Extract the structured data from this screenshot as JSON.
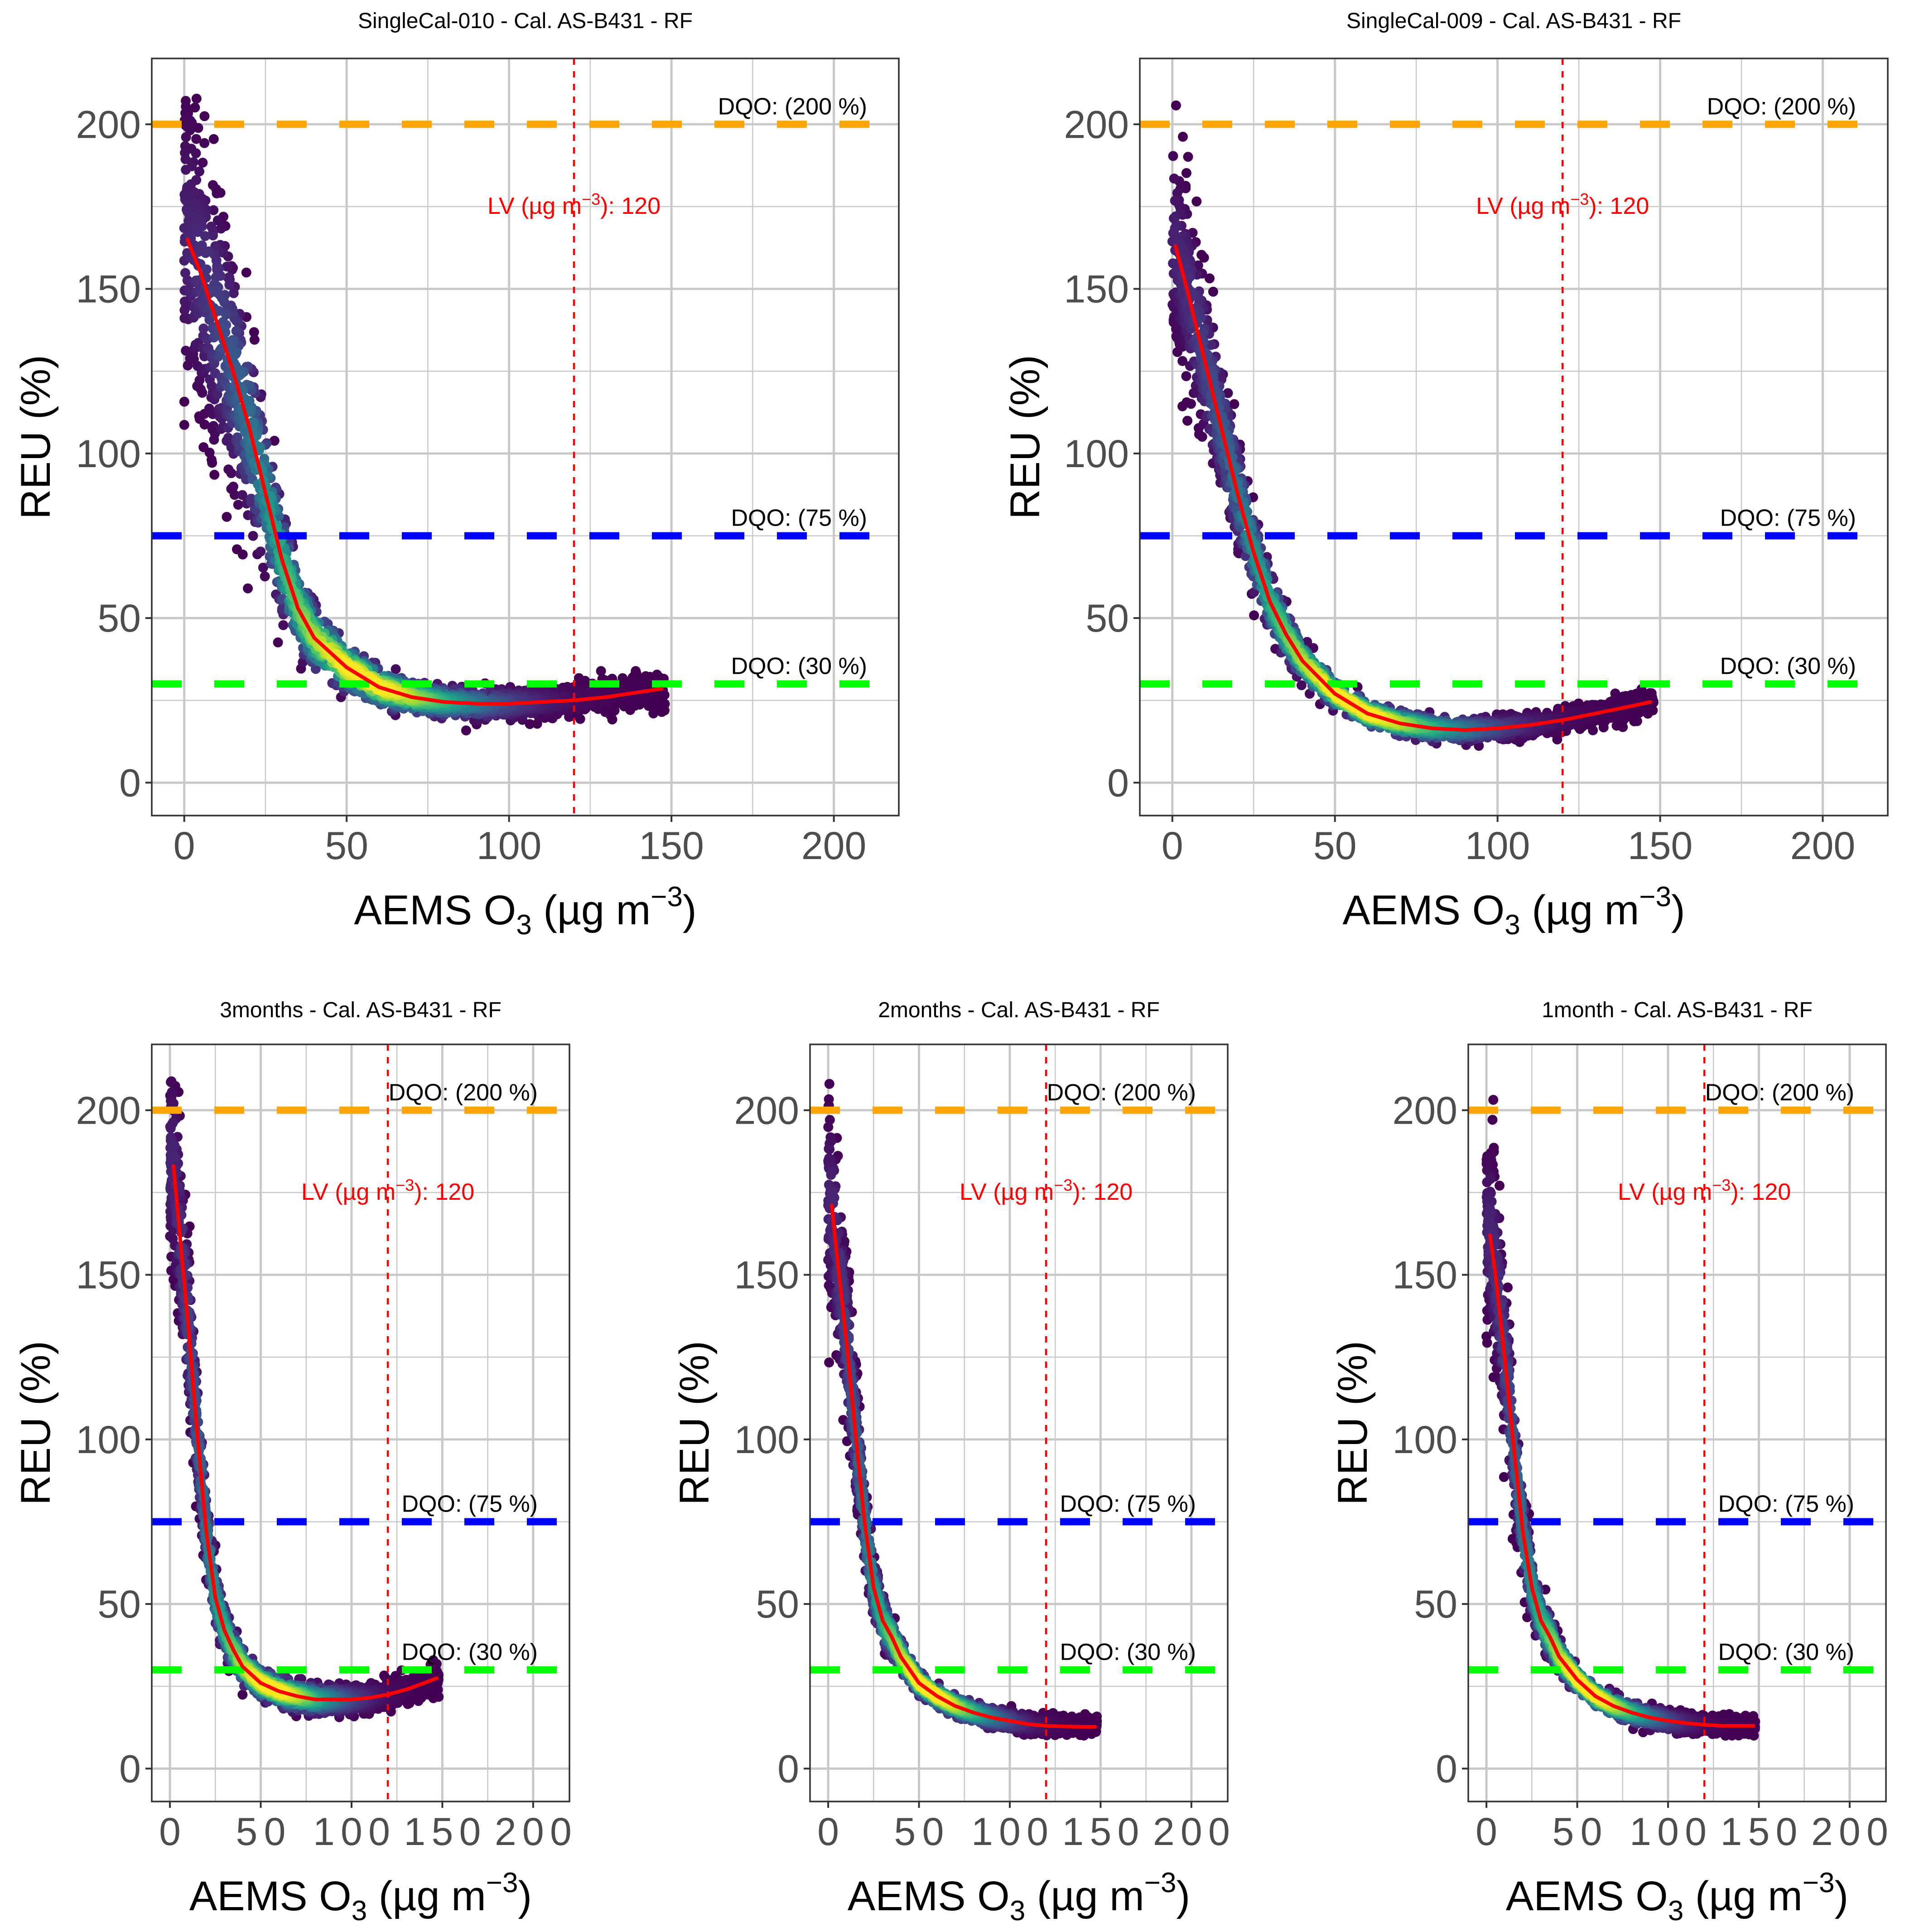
{
  "chart_data": [
    {
      "type": "scatter",
      "title": "SingleCal-010 - Cal. AS-B431 - RF",
      "xlabel": "AEMS O3 (µg m-3)",
      "xlabel_parts": {
        "main": "AEMS O",
        "sub": "3",
        "unit_open": " (µg m",
        "sup": "−3",
        "unit_close": ")"
      },
      "ylabel": "REU (%)",
      "xlim": [
        -10,
        220
      ],
      "ylim": [
        -10,
        220
      ],
      "xticks": [
        0,
        50,
        100,
        150,
        200
      ],
      "yticks": [
        0,
        50,
        100,
        150,
        200
      ],
      "grid": true,
      "dqo_lines": [
        {
          "value": 200,
          "label": "DQO: (200 %)",
          "color": "#FFA500"
        },
        {
          "value": 75,
          "label": "DQO: (75 %)",
          "color": "#0000FF"
        },
        {
          "value": 30,
          "label": "DQO: (30 %)",
          "color": "#00FF00"
        }
      ],
      "lv_line": {
        "value": 120,
        "label_prefix": "LV (µg m",
        "label_sup": "−3",
        "label_suffix": "): 120",
        "color": "#FF0000"
      },
      "fit_curve": {
        "name": "smooth",
        "color": "#FF0000",
        "x": [
          1,
          5,
          10,
          15,
          20,
          25,
          30,
          35,
          40,
          50,
          60,
          70,
          80,
          90,
          100,
          110,
          120,
          130,
          140,
          147
        ],
        "y": [
          165,
          155,
          140,
          125,
          108,
          88,
          68,
          53,
          44,
          35,
          29,
          26,
          24.5,
          24,
          24,
          24.5,
          25,
          26,
          27.5,
          28.5
        ]
      },
      "scatter": {
        "x_range": [
          0,
          148
        ],
        "spread_high": 45,
        "spread_low": 4,
        "n": 2200,
        "seed": 11,
        "colormap": "viridis"
      }
    },
    {
      "type": "scatter",
      "title": "SingleCal-009 - Cal. AS-B431 - RF",
      "xlabel": "AEMS O3 (µg m-3)",
      "xlabel_parts": {
        "main": "AEMS O",
        "sub": "3",
        "unit_open": " (µg m",
        "sup": "−3",
        "unit_close": ")"
      },
      "ylabel": "REU (%)",
      "xlim": [
        -10,
        220
      ],
      "ylim": [
        -10,
        220
      ],
      "xticks": [
        0,
        50,
        100,
        150,
        200
      ],
      "yticks": [
        0,
        50,
        100,
        150,
        200
      ],
      "grid": true,
      "dqo_lines": [
        {
          "value": 200,
          "label": "DQO: (200 %)",
          "color": "#FFA500"
        },
        {
          "value": 75,
          "label": "DQO: (75 %)",
          "color": "#0000FF"
        },
        {
          "value": 30,
          "label": "DQO: (30 %)",
          "color": "#00FF00"
        }
      ],
      "lv_line": {
        "value": 120,
        "label_prefix": "LV (µg m",
        "label_sup": "−3",
        "label_suffix": "): 120",
        "color": "#FF0000"
      },
      "fit_curve": {
        "name": "smooth",
        "color": "#FF0000",
        "x": [
          1,
          5,
          10,
          15,
          20,
          25,
          30,
          35,
          40,
          50,
          60,
          70,
          80,
          90,
          100,
          110,
          120,
          130,
          140,
          147
        ],
        "y": [
          163,
          148,
          128,
          108,
          88,
          70,
          55,
          45,
          37,
          27,
          21,
          18,
          16.5,
          16,
          16.5,
          17.5,
          19,
          21,
          23,
          24.5
        ]
      },
      "scatter": {
        "x_range": [
          0,
          148
        ],
        "spread_high": 30,
        "spread_low": 3,
        "n": 2200,
        "seed": 23,
        "colormap": "viridis"
      }
    },
    {
      "type": "scatter",
      "title": "3months - Cal. AS-B431 - RF",
      "xlabel": "AEMS O3 (µg m-3)",
      "xlabel_parts": {
        "main": "AEMS O",
        "sub": "3",
        "unit_open": " (µg m",
        "sup": "−3",
        "unit_close": ")"
      },
      "ylabel": "REU (%)",
      "xlim": [
        -10,
        220
      ],
      "ylim": [
        -10,
        220
      ],
      "xticks": [
        0,
        50,
        100,
        150,
        200
      ],
      "yticks": [
        0,
        50,
        100,
        150,
        200
      ],
      "grid": true,
      "dqo_lines": [
        {
          "value": 200,
          "label": "DQO: (200 %)",
          "color": "#FFA500"
        },
        {
          "value": 75,
          "label": "DQO: (75 %)",
          "color": "#0000FF"
        },
        {
          "value": 30,
          "label": "DQO: (30 %)",
          "color": "#00FF00"
        }
      ],
      "lv_line": {
        "value": 120,
        "label_prefix": "LV (µg m",
        "label_sup": "−3",
        "label_suffix": "): 120",
        "color": "#FF0000"
      },
      "fit_curve": {
        "name": "smooth",
        "color": "#FF0000",
        "x": [
          2,
          5,
          10,
          15,
          20,
          25,
          30,
          35,
          40,
          50,
          60,
          70,
          80,
          90,
          100,
          110,
          120,
          130,
          140,
          147
        ],
        "y": [
          183,
          165,
          135,
          102,
          72,
          52,
          42,
          36,
          31,
          26,
          23.5,
          22,
          21,
          21,
          21,
          21.5,
          22.5,
          24,
          26,
          27.5
        ]
      },
      "scatter": {
        "x_range": [
          0,
          148
        ],
        "spread_high": 28,
        "spread_low": 3.5,
        "n": 2000,
        "seed": 37,
        "colormap": "viridis"
      }
    },
    {
      "type": "scatter",
      "title": "2months - Cal. AS-B431 - RF",
      "xlabel": "AEMS O3 (µg m-3)",
      "xlabel_parts": {
        "main": "AEMS O",
        "sub": "3",
        "unit_open": " (µg m",
        "sup": "−3",
        "unit_close": ")"
      },
      "ylabel": "REU (%)",
      "xlim": [
        -10,
        220
      ],
      "ylim": [
        -10,
        220
      ],
      "xticks": [
        0,
        50,
        100,
        150,
        200
      ],
      "yticks": [
        0,
        50,
        100,
        150,
        200
      ],
      "grid": true,
      "dqo_lines": [
        {
          "value": 200,
          "label": "DQO: (200 %)",
          "color": "#FFA500"
        },
        {
          "value": 75,
          "label": "DQO: (75 %)",
          "color": "#0000FF"
        },
        {
          "value": 30,
          "label": "DQO: (30 %)",
          "color": "#00FF00"
        }
      ],
      "lv_line": {
        "value": 120,
        "label_prefix": "LV (µg m",
        "label_sup": "−3",
        "label_suffix": "): 120",
        "color": "#FF0000"
      },
      "fit_curve": {
        "name": "smooth",
        "color": "#FF0000",
        "x": [
          2,
          5,
          10,
          15,
          20,
          25,
          30,
          35,
          40,
          50,
          60,
          70,
          80,
          90,
          100,
          110,
          120,
          130,
          140,
          147
        ],
        "y": [
          171,
          155,
          130,
          102,
          75,
          55,
          45,
          40,
          34,
          26,
          22,
          19,
          17,
          15.5,
          14.5,
          13.5,
          13,
          12.8,
          12.7,
          12.7
        ]
      },
      "scatter": {
        "x_range": [
          0,
          148
        ],
        "spread_high": 30,
        "spread_low": 2.5,
        "n": 2000,
        "seed": 51,
        "colormap": "viridis"
      }
    },
    {
      "type": "scatter",
      "title": "1month - Cal. AS-B431 - RF",
      "xlabel": "AEMS O3 (µg m-3)",
      "xlabel_parts": {
        "main": "AEMS O",
        "sub": "3",
        "unit_open": " (µg m",
        "sup": "−3",
        "unit_close": ")"
      },
      "ylabel": "REU (%)",
      "xlim": [
        -10,
        220
      ],
      "ylim": [
        -10,
        220
      ],
      "xticks": [
        0,
        50,
        100,
        150,
        200
      ],
      "yticks": [
        0,
        50,
        100,
        150,
        200
      ],
      "grid": true,
      "dqo_lines": [
        {
          "value": 200,
          "label": "DQO: (200 %)",
          "color": "#FFA500"
        },
        {
          "value": 75,
          "label": "DQO: (75 %)",
          "color": "#0000FF"
        },
        {
          "value": 30,
          "label": "DQO: (30 %)",
          "color": "#00FF00"
        }
      ],
      "lv_line": {
        "value": 120,
        "label_prefix": "LV (µg m",
        "label_sup": "−3",
        "label_suffix": "): 120",
        "color": "#FF0000"
      },
      "fit_curve": {
        "name": "smooth",
        "color": "#FF0000",
        "x": [
          2,
          5,
          10,
          15,
          20,
          25,
          30,
          35,
          40,
          50,
          60,
          70,
          80,
          90,
          100,
          110,
          120,
          130,
          140,
          147
        ],
        "y": [
          162,
          150,
          125,
          98,
          72,
          55,
          45,
          40,
          34,
          27,
          22,
          19,
          17,
          15.5,
          14.5,
          13.8,
          13.3,
          13,
          13,
          13
        ]
      },
      "scatter": {
        "x_range": [
          0,
          148
        ],
        "spread_high": 30,
        "spread_low": 2.5,
        "n": 2000,
        "seed": 67,
        "colormap": "viridis"
      }
    }
  ]
}
